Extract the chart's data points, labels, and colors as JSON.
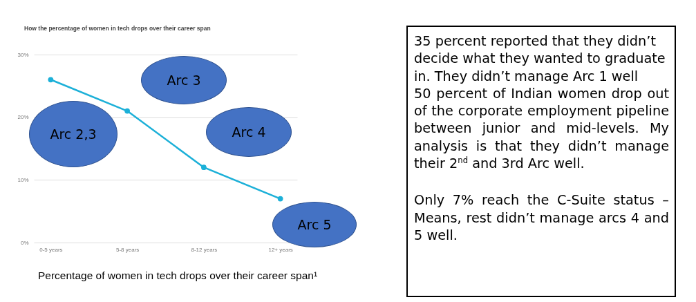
{
  "chart_data": {
    "type": "line",
    "title": "How the percentage of women in tech drops over their career span",
    "categories": [
      "0-5 years",
      "5-8 years",
      "8-12 years",
      "12+ years"
    ],
    "series": [
      {
        "color": "#1cb0d8",
        "values": [
          26,
          21,
          12,
          7
        ]
      }
    ],
    "ylim": [
      0,
      30
    ],
    "yticks": [
      {
        "value": 0,
        "label": "0%"
      },
      {
        "value": 10,
        "label": "10%"
      },
      {
        "value": 20,
        "label": "20%"
      },
      {
        "value": 30,
        "label": "30%"
      }
    ],
    "grid": "y",
    "marker": "circle",
    "line_style": "solid",
    "annotations": [
      "Percentage of women in tech drops over their career span¹",
      "Arc 3",
      "Arc 2,3",
      "Arc 4",
      "Arc 5",
      "35 percent reported that they didn’t decide what they wanted to graduate in. They didn’t manage Arc 1 well",
      "50 percent of Indian women drop out of the corporate employment pipeline between junior and mid-levels. My analysis is that they didn’t manage their 2$^{nd}$ and 3rd Arc well.",
      "Only 7% reach the C-Suite status – Means, rest didn’t manage arcs 4 and 5 well."
    ]
  }
}
